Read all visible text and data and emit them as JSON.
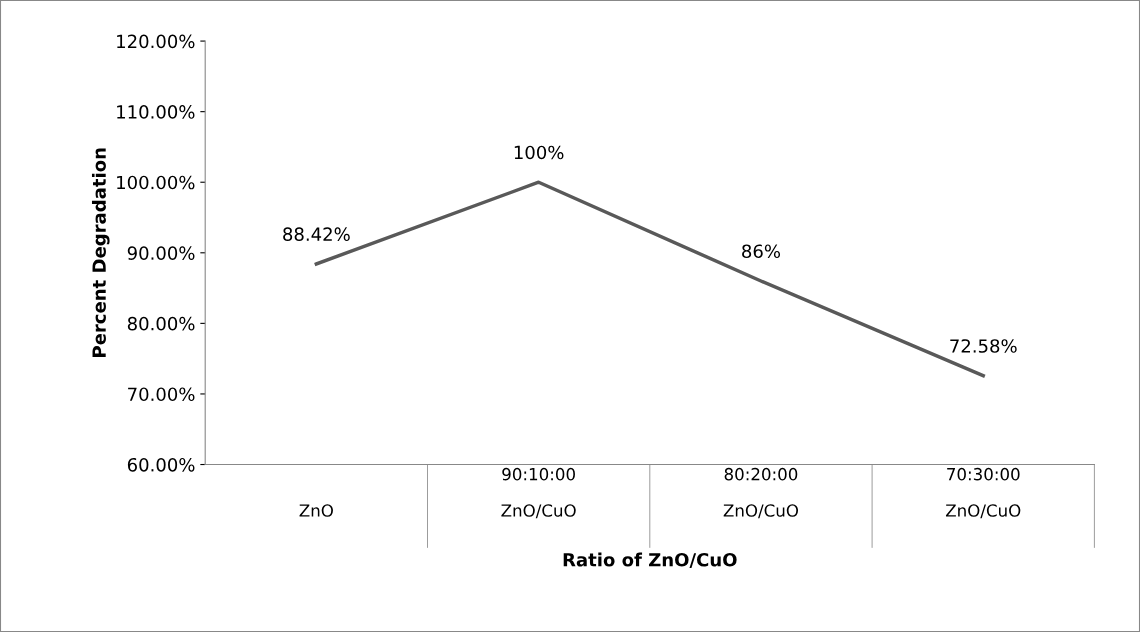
{
  "chart_data": {
    "type": "line",
    "xlabel": "Ratio of ZnO/CuO",
    "ylabel": "Percent Degradation",
    "categories": [
      "ZnO",
      "90:10:00\nZnO/CuO",
      "80:20:00\nZnO/CuO",
      "70:30:00\nZnO/CuO"
    ],
    "series": [
      {
        "color": "#595959",
        "values": [
          88.42,
          100,
          86,
          72.58
        ],
        "value_labels": [
          "88.42%",
          "100%",
          "86%",
          "72.58%"
        ]
      }
    ],
    "ylim": [
      60,
      120
    ],
    "yticks": [
      {
        "value": 60,
        "label": "60.00%"
      },
      {
        "value": 70,
        "label": "70.00%"
      },
      {
        "value": 80,
        "label": "80.00%"
      },
      {
        "value": 90,
        "label": "90.00%"
      },
      {
        "value": 100,
        "label": "100.00%"
      },
      {
        "value": 110,
        "label": "110.00%"
      },
      {
        "value": 120,
        "label": "120.00%"
      }
    ],
    "grid": false,
    "legend": false,
    "marker": "none",
    "line_style": "solid"
  }
}
